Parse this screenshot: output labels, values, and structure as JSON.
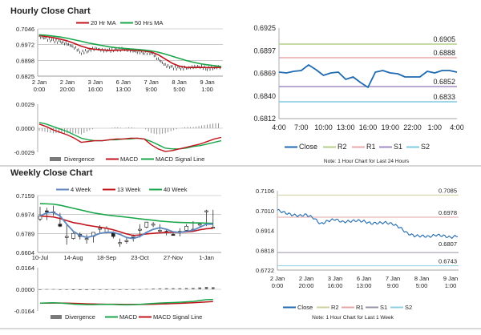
{
  "colors": {
    "red": "#c0141c",
    "green": "#1aa64a",
    "blue": "#5b86c0",
    "close": "#1f6ab0",
    "divergence": "#7a7a7a",
    "r2": "#b5cf88",
    "r1": "#e8a8a8",
    "s1": "#a08cc4",
    "s2": "#7cccdf",
    "r2b": "#cfcfa0",
    "r1b": "#e2a6a6",
    "s1b": "#9a90a8",
    "s2b": "#8fd0e0"
  },
  "hourly": {
    "title": "Hourly Close Chart"
  },
  "weekly": {
    "title": "Weekly Close Chart"
  },
  "chart_data": [
    {
      "id": "hourly-price",
      "type": "line",
      "grid": true,
      "legend": "top",
      "legend_entries": [
        "20 Hr MA",
        "50 Hrs MA"
      ],
      "ylim": [
        0.6825,
        0.7046
      ],
      "yticks": [
        "0.7046",
        "0.6972",
        "0.6898",
        "0.6825"
      ],
      "xticks": [
        [
          "2 Jan",
          "0:00"
        ],
        [
          "2 Jan",
          "20:00"
        ],
        [
          "3 Jan",
          "16:00"
        ],
        [
          "6 Jan",
          "13:00"
        ],
        [
          "7 Jan",
          "9:00"
        ],
        [
          "8 Jan",
          "5:00"
        ],
        [
          "9 Jan",
          "1:00"
        ]
      ],
      "x_hours": [
        0,
        5,
        10,
        15,
        20,
        25,
        30,
        35,
        40,
        45,
        50,
        55,
        60,
        65,
        70,
        75,
        80,
        85,
        90,
        95,
        100,
        105,
        110,
        115,
        120,
        125,
        130
      ],
      "series": [
        {
          "key": "close",
          "values": [
            0.701,
            0.7,
            0.699,
            0.6985,
            0.6975,
            0.696,
            0.6935,
            0.6945,
            0.6955,
            0.6945,
            0.6945,
            0.695,
            0.695,
            0.6945,
            0.694,
            0.6935,
            0.6935,
            0.6905,
            0.6875,
            0.6865,
            0.6862,
            0.6862,
            0.6868,
            0.687,
            0.686,
            0.6865,
            0.6868
          ]
        },
        {
          "name": "20 Hr MA",
          "values": [
            0.7015,
            0.701,
            0.7005,
            0.6998,
            0.699,
            0.6978,
            0.6965,
            0.6955,
            0.695,
            0.6948,
            0.6945,
            0.6946,
            0.6947,
            0.6947,
            0.6945,
            0.6942,
            0.6938,
            0.6925,
            0.6905,
            0.6885,
            0.6872,
            0.6866,
            0.6865,
            0.6866,
            0.6865,
            0.6865,
            0.6866
          ]
        },
        {
          "name": "50 Hrs MA",
          "values": [
            0.7018,
            0.7016,
            0.7012,
            0.7008,
            0.7002,
            0.6995,
            0.6988,
            0.698,
            0.6974,
            0.6968,
            0.6962,
            0.6958,
            0.6955,
            0.6952,
            0.695,
            0.6947,
            0.6943,
            0.6937,
            0.6928,
            0.6918,
            0.6908,
            0.6898,
            0.689,
            0.6883,
            0.6878,
            0.6874,
            0.687
          ]
        }
      ]
    },
    {
      "id": "hourly-macd",
      "type": "line",
      "legend": "bottom",
      "legend_entries": [
        "Divergence",
        "MACD",
        "MACD Signal Line"
      ],
      "ylim": [
        -0.0029,
        0.0029
      ],
      "yticks": [
        "0.0029",
        "0.0000",
        "-0.0029"
      ],
      "series": [
        {
          "name": "MACD",
          "values": [
            0.0005,
            0.0002,
            -0.0002,
            -0.0005,
            -0.0008,
            -0.0012,
            -0.0017,
            -0.0016,
            -0.0015,
            -0.0015,
            -0.0014,
            -0.0013,
            -0.0013,
            -0.0012,
            -0.0012,
            -0.0013,
            -0.002,
            -0.0025,
            -0.0028,
            -0.0027,
            -0.0025,
            -0.0023,
            -0.0021,
            -0.0019,
            -0.0016,
            -0.0013,
            -0.0011
          ]
        },
        {
          "name": "MACD Signal Line",
          "values": [
            0.0007,
            0.0005,
            0.0002,
            -0.0001,
            -0.0004,
            -0.0008,
            -0.0012,
            -0.0014,
            -0.0015,
            -0.0015,
            -0.0014,
            -0.0014,
            -0.0013,
            -0.0013,
            -0.0012,
            -0.0013,
            -0.0016,
            -0.002,
            -0.0024,
            -0.0025,
            -0.0025,
            -0.0024,
            -0.0022,
            -0.0021,
            -0.0019,
            -0.0017,
            -0.0015
          ]
        }
      ]
    },
    {
      "id": "last-24-hours",
      "type": "line",
      "legend": "bottom",
      "legend_entries": [
        "Close",
        "R2",
        "R1",
        "S1",
        "S2"
      ],
      "ylim": [
        0.6812,
        0.6925
      ],
      "yticks": [
        "0.6925",
        "0.6897",
        "0.6869",
        "0.6840",
        "0.6812"
      ],
      "xticks": [
        "4:00",
        "7:00",
        "10:00",
        "13:00",
        "16:00",
        "19:00",
        "22:00",
        "1:00",
        "4:00"
      ],
      "close": [
        0.687,
        0.6869,
        0.6871,
        0.6872,
        0.6879,
        0.6873,
        0.6866,
        0.6869,
        0.687,
        0.6861,
        0.6864,
        0.6857,
        0.6851,
        0.687,
        0.6872,
        0.6869,
        0.6868,
        0.6864,
        0.6864,
        0.6864,
        0.6871,
        0.6869,
        0.6872,
        0.6872,
        0.687
      ],
      "levels": {
        "R2": "0.6905",
        "R1": "0.6888",
        "S1": "0.6852",
        "S2": "0.6833"
      },
      "note": "Note: 1 Hour Chart for Last 24 Hours"
    },
    {
      "id": "weekly-price",
      "type": "candlestick",
      "grid": true,
      "legend": "top",
      "legend_entries": [
        "4 Week",
        "13 Week",
        "40 Week"
      ],
      "ylim": [
        0.6604,
        0.7159
      ],
      "yticks": [
        "0.7159",
        "0.6974",
        "0.6789",
        "0.6604"
      ],
      "xticks": [
        "10-Jul",
        "14-Aug",
        "18-Sep",
        "23-Oct",
        "27-Nov",
        "1-Jan"
      ],
      "candles_ohlc": [
        [
          0.693,
          0.705,
          0.691,
          0.696
        ],
        [
          0.701,
          0.704,
          0.692,
          0.7
        ],
        [
          0.7,
          0.706,
          0.696,
          0.699
        ],
        [
          0.688,
          0.699,
          0.685,
          0.686
        ],
        [
          0.676,
          0.688,
          0.668,
          0.676
        ],
        [
          0.674,
          0.68,
          0.673,
          0.679
        ],
        [
          0.678,
          0.68,
          0.673,
          0.676
        ],
        [
          0.674,
          0.678,
          0.669,
          0.674
        ],
        [
          0.676,
          0.68,
          0.67,
          0.68
        ],
        [
          0.683,
          0.687,
          0.679,
          0.684
        ],
        [
          0.68,
          0.686,
          0.679,
          0.684
        ],
        [
          0.68,
          0.681,
          0.674,
          0.676
        ],
        [
          0.67,
          0.674,
          0.666,
          0.67
        ],
        [
          0.671,
          0.675,
          0.669,
          0.672
        ],
        [
          0.675,
          0.678,
          0.671,
          0.676
        ],
        [
          0.683,
          0.688,
          0.675,
          0.683
        ],
        [
          0.685,
          0.69,
          0.684,
          0.69
        ],
        [
          0.687,
          0.69,
          0.685,
          0.688
        ],
        [
          0.682,
          0.688,
          0.68,
          0.682
        ],
        [
          0.681,
          0.683,
          0.677,
          0.68
        ],
        [
          0.678,
          0.68,
          0.677,
          0.677
        ],
        [
          0.681,
          0.684,
          0.676,
          0.681
        ],
        [
          0.682,
          0.688,
          0.68,
          0.686
        ],
        [
          0.683,
          0.691,
          0.681,
          0.683
        ],
        [
          0.688,
          0.689,
          0.685,
          0.688
        ],
        [
          0.701,
          0.702,
          0.686,
          0.701
        ],
        [
          0.685,
          0.702,
          0.684,
          0.685
        ]
      ],
      "series": [
        {
          "name": "4 Week",
          "values": [
            0.696,
            0.699,
            0.6995,
            0.696,
            0.688,
            0.681,
            0.677,
            0.675,
            0.6765,
            0.679,
            0.68,
            0.68,
            0.678,
            0.675,
            0.674,
            0.676,
            0.68,
            0.683,
            0.6845,
            0.683,
            0.6805,
            0.68,
            0.681,
            0.682,
            0.685,
            0.688,
            0.688
          ]
        },
        {
          "name": "13 Week",
          "values": [
            0.696,
            0.6955,
            0.695,
            0.6935,
            0.6915,
            0.6895,
            0.6885,
            0.687,
            0.686,
            0.685,
            0.684,
            0.6825,
            0.6805,
            0.6785,
            0.677,
            0.6775,
            0.6785,
            0.679,
            0.6795,
            0.68,
            0.68,
            0.68,
            0.6805,
            0.681,
            0.6825,
            0.6835,
            0.684
          ]
        },
        {
          "name": "40 Week",
          "values": [
            0.708,
            0.7078,
            0.7075,
            0.7065,
            0.705,
            0.7035,
            0.702,
            0.7005,
            0.699,
            0.698,
            0.697,
            0.6962,
            0.6955,
            0.6948,
            0.694,
            0.6932,
            0.6925,
            0.6918,
            0.691,
            0.6905,
            0.69,
            0.6897,
            0.6895,
            0.6893,
            0.6892,
            0.689,
            0.6888
          ]
        }
      ]
    },
    {
      "id": "weekly-macd",
      "type": "line",
      "legend": "bottom",
      "legend_entries": [
        "Divergence",
        "MACD",
        "MACD Signal Line"
      ],
      "ylim": [
        -0.0164,
        0.0164
      ],
      "yticks": [
        "0.0164",
        "0.0000",
        "-0.0164"
      ],
      "series": [
        {
          "name": "MACD",
          "values": [
            -0.0105,
            -0.0103,
            -0.0102,
            -0.0104,
            -0.0108,
            -0.0112,
            -0.0114,
            -0.0116,
            -0.0116,
            -0.0115,
            -0.0114,
            -0.0115,
            -0.0117,
            -0.0118,
            -0.0117,
            -0.0114,
            -0.011,
            -0.0107,
            -0.0104,
            -0.0102,
            -0.01,
            -0.0098,
            -0.0095,
            -0.0092,
            -0.0085,
            -0.0078,
            -0.0077
          ]
        },
        {
          "name": "MACD Signal Line",
          "values": [
            -0.0105,
            -0.0105,
            -0.0104,
            -0.0104,
            -0.0105,
            -0.0106,
            -0.0108,
            -0.011,
            -0.0111,
            -0.0112,
            -0.0113,
            -0.0113,
            -0.0114,
            -0.0115,
            -0.0115,
            -0.0115,
            -0.0114,
            -0.0113,
            -0.0111,
            -0.011,
            -0.0108,
            -0.0106,
            -0.0104,
            -0.0102,
            -0.0099,
            -0.0096,
            -0.0093
          ]
        }
      ]
    },
    {
      "id": "last-1-week",
      "type": "line",
      "legend": "bottom",
      "legend_entries": [
        "Close",
        "R2",
        "R1",
        "S1",
        "S2"
      ],
      "ylim": [
        0.6722,
        0.7106
      ],
      "yticks": [
        "0.7106",
        "0.7010",
        "0.6914",
        "0.6818",
        "0.6722"
      ],
      "xticks": [
        [
          "2 Jan",
          "0:00"
        ],
        [
          "2 Jan",
          "20:00"
        ],
        [
          "3 Jan",
          "16:00"
        ],
        [
          "6 Jan",
          "13:00"
        ],
        [
          "7 Jan",
          "9:00"
        ],
        [
          "8 Jan",
          "5:00"
        ],
        [
          "9 Jan",
          "1:00"
        ]
      ],
      "close": [
        0.7012,
        0.7,
        0.699,
        0.6985,
        0.699,
        0.6975,
        0.6945,
        0.696,
        0.6968,
        0.6955,
        0.6958,
        0.6962,
        0.6958,
        0.6948,
        0.695,
        0.6952,
        0.6945,
        0.6928,
        0.69,
        0.6888,
        0.6887,
        0.6884,
        0.6892,
        0.6888,
        0.688,
        0.6888,
        0.6893
      ],
      "levels": {
        "R2": "0.7085",
        "R1": "0.6978",
        "S1": "0.6807",
        "S2": "0.6743"
      },
      "note": "Note: 1 Hour Chart for Last 1 Week"
    }
  ]
}
